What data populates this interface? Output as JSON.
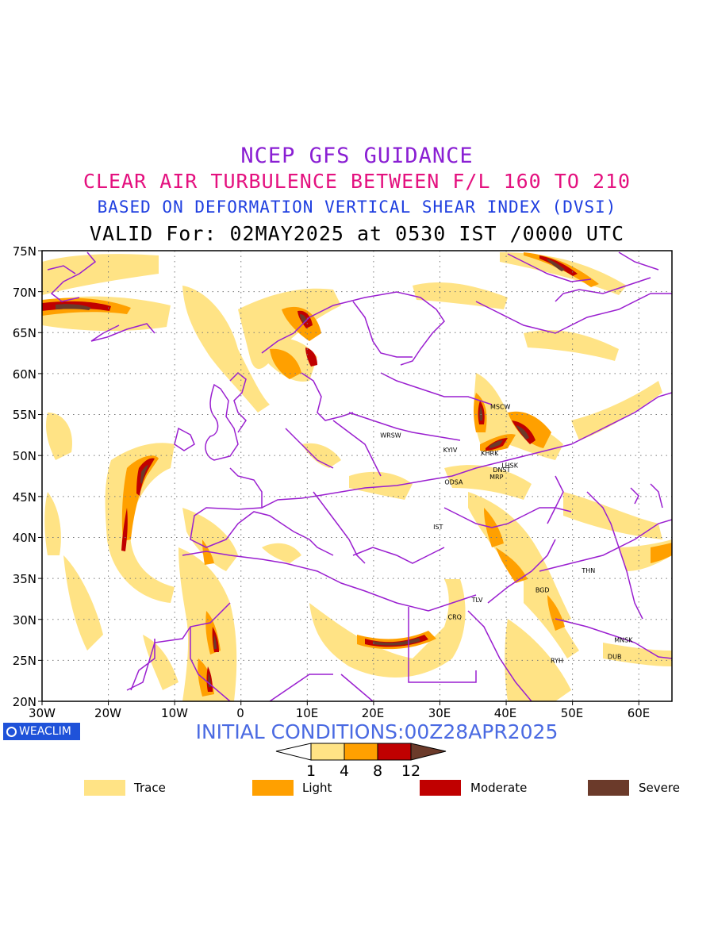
{
  "titles": {
    "line1": "NCEP GFS GUIDANCE",
    "line2": "CLEAR AIR TURBULENCE BETWEEN F/L 160 TO 210",
    "line3": "BASED ON DEFORMATION VERTICAL SHEAR INDEX (DVSI)",
    "line4": "VALID For: 02MAY2025 at 0530 IST /0000 UTC"
  },
  "map": {
    "lat_labels": [
      "75N",
      "70N",
      "65N",
      "60N",
      "55N",
      "50N",
      "45N",
      "40N",
      "35N",
      "30N",
      "25N",
      "20N"
    ],
    "lon_labels": [
      "30W",
      "20W",
      "10W",
      "0",
      "10E",
      "20E",
      "30E",
      "40E",
      "50E",
      "60E"
    ],
    "extent": {
      "lon_min": -30,
      "lon_max": 65,
      "lat_min": 20,
      "lat_max": 75
    },
    "grid": true,
    "boundary_color": "#9a1fd0",
    "cities": [
      {
        "code": "MSCW",
        "lon": 37.6,
        "lat": 55.7
      },
      {
        "code": "WRSW",
        "lon": 21.0,
        "lat": 52.2
      },
      {
        "code": "KYIV",
        "lon": 30.5,
        "lat": 50.4
      },
      {
        "code": "KHRK",
        "lon": 36.2,
        "lat": 50.0
      },
      {
        "code": "LHSK",
        "lon": 39.3,
        "lat": 48.5
      },
      {
        "code": "DNST",
        "lon": 38.0,
        "lat": 48.0
      },
      {
        "code": "MRP",
        "lon": 37.5,
        "lat": 47.1
      },
      {
        "code": "ODSA",
        "lon": 30.7,
        "lat": 46.5
      },
      {
        "code": "IST",
        "lon": 29.0,
        "lat": 41.0
      },
      {
        "code": "THN",
        "lon": 51.4,
        "lat": 35.7
      },
      {
        "code": "BGD",
        "lon": 44.4,
        "lat": 33.3
      },
      {
        "code": "TLV",
        "lon": 34.8,
        "lat": 32.1
      },
      {
        "code": "CRO",
        "lon": 31.2,
        "lat": 30.0
      },
      {
        "code": "MNSK",
        "lon": 56.3,
        "lat": 27.2
      },
      {
        "code": "DUB",
        "lon": 55.3,
        "lat": 25.2
      },
      {
        "code": "RYH",
        "lon": 46.7,
        "lat": 24.7
      }
    ]
  },
  "footer": {
    "brand": "WEACLIM",
    "initial_conditions": "INITIAL CONDITIONS:00Z28APR2025"
  },
  "colorbar": {
    "ticks": [
      "1",
      "4",
      "8",
      "12"
    ],
    "colors": [
      "#ffe385",
      "#ffa000",
      "#c00000",
      "#6b3a2a"
    ]
  },
  "legend": [
    {
      "label": "Trace",
      "color": "#ffe385"
    },
    {
      "label": "Light",
      "color": "#ffa000"
    },
    {
      "label": "Moderate",
      "color": "#c00000"
    },
    {
      "label": "Severe",
      "color": "#6b3a2a"
    }
  ]
}
